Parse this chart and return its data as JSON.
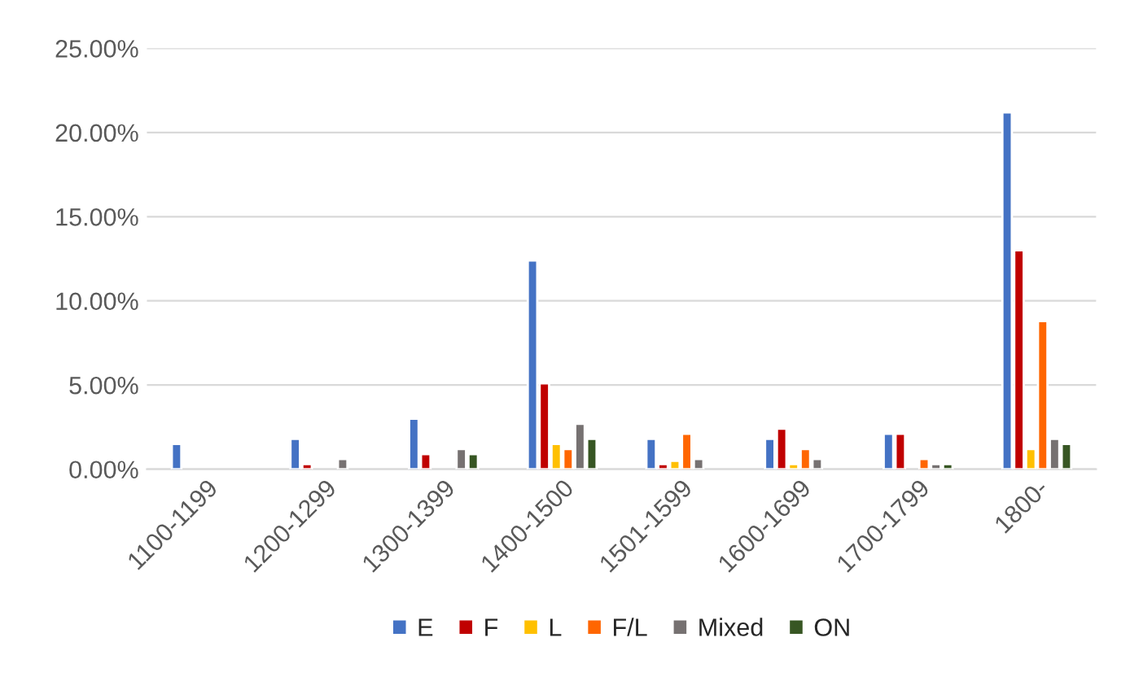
{
  "chart_data": {
    "type": "bar",
    "categories": [
      "1100-1199",
      "1200-1299",
      "1300-1399",
      "1400-1500",
      "1501-1599",
      "1600-1699",
      "1700-1799",
      "1800-"
    ],
    "series": [
      {
        "name": "E",
        "color": "#4472c4",
        "values": [
          1.5,
          1.8,
          3.0,
          12.4,
          1.8,
          1.8,
          2.1,
          21.2
        ]
      },
      {
        "name": "F",
        "color": "#c00000",
        "values": [
          null,
          0.3,
          0.9,
          5.1,
          0.3,
          2.4,
          2.1,
          13.0
        ]
      },
      {
        "name": "L",
        "color": "#ffc000",
        "values": [
          null,
          null,
          null,
          1.5,
          0.5,
          0.3,
          null,
          1.2
        ]
      },
      {
        "name": "F/L",
        "color": "#ff6600",
        "values": [
          null,
          null,
          null,
          1.2,
          2.1,
          1.2,
          0.6,
          8.8
        ]
      },
      {
        "name": "Mixed",
        "color": "#767171",
        "values": [
          null,
          0.6,
          1.2,
          2.7,
          0.6,
          0.6,
          0.3,
          1.8
        ]
      },
      {
        "name": "ON",
        "color": "#375623",
        "values": [
          null,
          null,
          0.9,
          1.8,
          null,
          null,
          0.3,
          1.5
        ]
      }
    ],
    "ylim": [
      0,
      25
    ],
    "yticks": [
      {
        "value": 0,
        "label": "0.00%"
      },
      {
        "value": 5,
        "label": "5.00%"
      },
      {
        "value": 10,
        "label": "10.00%"
      },
      {
        "value": 15,
        "label": "15.00%"
      },
      {
        "value": 20,
        "label": "20.00%"
      },
      {
        "value": 25,
        "label": "25.00%"
      }
    ],
    "grid": "y",
    "legend": "bottom"
  }
}
